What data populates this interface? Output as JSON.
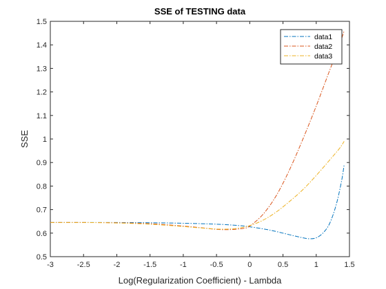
{
  "chart_data": {
    "type": "line",
    "title": "SSE of TESTING data",
    "xlabel": "Log(Regularization Coefficient) - Lambda",
    "ylabel": "SSE",
    "xlim": [
      -3,
      1.5
    ],
    "ylim": [
      0.5,
      1.5
    ],
    "xticks": [
      -3,
      -2.5,
      -2,
      -1.5,
      -1,
      -0.5,
      0,
      0.5,
      1,
      1.5
    ],
    "yticks": [
      0.5,
      0.6,
      0.7,
      0.8,
      0.9,
      1,
      1.1,
      1.2,
      1.3,
      1.4,
      1.5
    ],
    "xtick_labels": [
      "-3",
      "-2.5",
      "-2",
      "-1.5",
      "-1",
      "-0.5",
      "0",
      "0.5",
      "1",
      "1.5"
    ],
    "ytick_labels": [
      "0.5",
      "0.6",
      "0.7",
      "0.8",
      "0.9",
      "1",
      "1.1",
      "1.2",
      "1.3",
      "1.4",
      "1.5"
    ],
    "grid": false,
    "legend_position": "top-right",
    "series": [
      {
        "name": "data1",
        "color": "#0072BD",
        "line_style": "dash-dot",
        "x": [
          -3,
          -2.5,
          -2,
          -1.5,
          -1,
          -0.5,
          -0.2,
          0,
          0.3,
          0.6,
          0.8,
          0.9,
          1.0,
          1.1,
          1.2,
          1.3,
          1.38,
          1.42
        ],
        "y": [
          0.645,
          0.645,
          0.645,
          0.644,
          0.642,
          0.638,
          0.633,
          0.627,
          0.613,
          0.593,
          0.58,
          0.576,
          0.58,
          0.6,
          0.64,
          0.72,
          0.82,
          0.89
        ]
      },
      {
        "name": "data2",
        "color": "#D95319",
        "line_style": "dash-dot",
        "x": [
          -3,
          -2.5,
          -2,
          -1.5,
          -1,
          -0.7,
          -0.5,
          -0.3,
          -0.1,
          0,
          0.2,
          0.4,
          0.6,
          0.8,
          1.0,
          1.2,
          1.35,
          1.42
        ],
        "y": [
          0.645,
          0.645,
          0.644,
          0.64,
          0.63,
          0.622,
          0.616,
          0.615,
          0.62,
          0.63,
          0.68,
          0.76,
          0.87,
          1.0,
          1.14,
          1.29,
          1.4,
          1.46
        ]
      },
      {
        "name": "data3",
        "color": "#EDB120",
        "line_style": "dash-dot",
        "x": [
          -3,
          -2.5,
          -2,
          -1.5,
          -1,
          -0.6,
          -0.4,
          -0.2,
          0,
          0.2,
          0.4,
          0.6,
          0.8,
          1.0,
          1.2,
          1.35,
          1.42
        ],
        "y": [
          0.645,
          0.645,
          0.643,
          0.638,
          0.628,
          0.619,
          0.617,
          0.62,
          0.632,
          0.655,
          0.69,
          0.735,
          0.785,
          0.845,
          0.91,
          0.96,
          0.99
        ]
      }
    ]
  }
}
